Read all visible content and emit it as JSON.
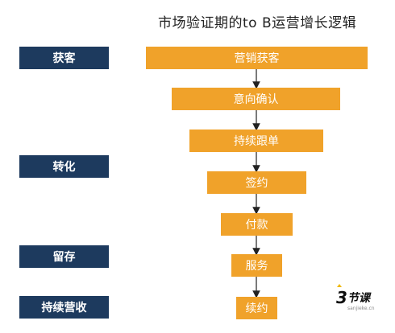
{
  "title": "市场验证期的to B运营增长逻辑",
  "stages": [
    "获客",
    "转化",
    "留存",
    "持续营收"
  ],
  "steps": [
    "营销获客",
    "意向确认",
    "持续跟单",
    "签约",
    "付款",
    "服务",
    "续约"
  ],
  "colors": {
    "stage_bg": "#1d3a5e",
    "step_bg": "#f0a22a",
    "arrow": "#222222"
  },
  "watermark": {
    "text": "3节课",
    "sub": "sanjieke.cn"
  }
}
